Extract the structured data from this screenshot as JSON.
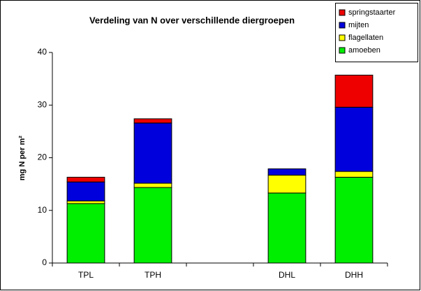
{
  "chart_data": {
    "type": "stacked_bar",
    "title": "Verdeling van N over verschillende diergroepen",
    "ylabel": "mg N per m²",
    "categories": [
      "TPL",
      "TPH",
      null,
      "DHL",
      "DHH"
    ],
    "series": [
      {
        "name": "amoeben",
        "color": "#00ee00",
        "values": [
          11.3,
          14.35,
          null,
          13.3,
          16.3
        ]
      },
      {
        "name": "flagellaten",
        "color": "#ffff00",
        "values": [
          0.5,
          0.8,
          null,
          3.4,
          1.1
        ]
      },
      {
        "name": "mijten",
        "color": "#0000dd",
        "values": [
          3.6,
          11.45,
          null,
          1.2,
          12.2
        ]
      },
      {
        "name": "springstaarter",
        "color": "#ee0000",
        "values": [
          0.9,
          0.8,
          null,
          0,
          6.1
        ]
      }
    ],
    "ylim": [
      0,
      40
    ],
    "yticks": [
      0,
      10,
      20,
      30,
      40
    ],
    "grid": false,
    "legend": "top-right"
  }
}
